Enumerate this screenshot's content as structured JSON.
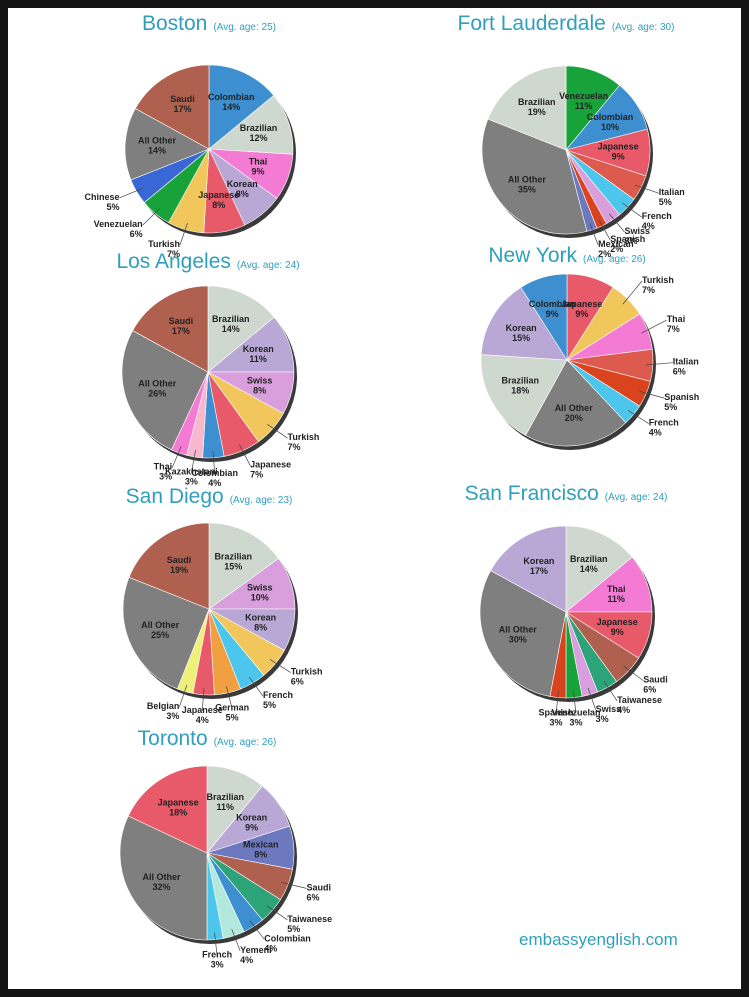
{
  "footer": "embassyenglish.com",
  "colors": {
    "title": "#2f9fbd",
    "border": "#141414",
    "Brazilian": "#cfd8cf",
    "Korean": "#b9a8d6",
    "Swiss": "#d89fdc",
    "Turkish": "#f1c65a",
    "Japanese": "#e8596a",
    "Colombian": "#3d8fd0",
    "Kazakhstani": "#f7b7cd",
    "Thai": "#f47bd4",
    "All Other": "#7f7f7f",
    "Saudi": "#b0604f",
    "Venezuelan": "#18a23a",
    "Chinese": "#3a67d6",
    "Italian": "#dc5b4e",
    "French": "#4cc6ec",
    "Spanish": "#d9441f",
    "Mexican": "#6d79bf",
    "German": "#f0a040",
    "Belgian": "#eef07a",
    "Taiwanese": "#2da37a",
    "Yemeni": "#b3e9dc"
  },
  "chart_data": [
    {
      "type": "pie",
      "city": "Boston",
      "subtitle": "(Avg. age: 25)",
      "slices": [
        {
          "label": "Colombian",
          "value": 14
        },
        {
          "label": "Brazilian",
          "value": 12
        },
        {
          "label": "Thai",
          "value": 9
        },
        {
          "label": "Korean",
          "value": 8
        },
        {
          "label": "Japanese",
          "value": 8
        },
        {
          "label": "Turkish",
          "value": 7
        },
        {
          "label": "Venezuelan",
          "value": 6
        },
        {
          "label": "Chinese",
          "value": 5
        },
        {
          "label": "All Other",
          "value": 14
        },
        {
          "label": "Saudi",
          "value": 17
        }
      ]
    },
    {
      "type": "pie",
      "city": "Fort Lauderdale",
      "subtitle": "(Avg. age: 30)",
      "slices": [
        {
          "label": "Venezuelan",
          "value": 11
        },
        {
          "label": "Colombian",
          "value": 10
        },
        {
          "label": "Japanese",
          "value": 9
        },
        {
          "label": "Italian",
          "value": 5
        },
        {
          "label": "French",
          "value": 4
        },
        {
          "label": "Swiss",
          "value": 3
        },
        {
          "label": "Spanish",
          "value": 2
        },
        {
          "label": "Mexican",
          "value": 2
        },
        {
          "label": "All Other",
          "value": 35
        },
        {
          "label": "Brazilian",
          "value": 19
        }
      ]
    },
    {
      "type": "pie",
      "city": "Los Angeles",
      "subtitle": "(Avg. age: 24)",
      "slices": [
        {
          "label": "Brazilian",
          "value": 14
        },
        {
          "label": "Korean",
          "value": 11
        },
        {
          "label": "Swiss",
          "value": 8
        },
        {
          "label": "Turkish",
          "value": 7
        },
        {
          "label": "Japanese",
          "value": 7
        },
        {
          "label": "Colombian",
          "value": 4
        },
        {
          "label": "Kazakhstani",
          "value": 3
        },
        {
          "label": "Thai",
          "value": 3
        },
        {
          "label": "All Other",
          "value": 26
        },
        {
          "label": "Saudi",
          "value": 17
        }
      ]
    },
    {
      "type": "pie",
      "city": "New York",
      "subtitle": "(Avg. age: 26)",
      "slices": [
        {
          "label": "Japanese",
          "value": 9
        },
        {
          "label": "Turkish",
          "value": 7
        },
        {
          "label": "Thai",
          "value": 7
        },
        {
          "label": "Italian",
          "value": 6
        },
        {
          "label": "Spanish",
          "value": 5
        },
        {
          "label": "French",
          "value": 4
        },
        {
          "label": "All Other",
          "value": 20
        },
        {
          "label": "Brazilian",
          "value": 18
        },
        {
          "label": "Korean",
          "value": 15
        },
        {
          "label": "Colombian",
          "value": 9
        }
      ]
    },
    {
      "type": "pie",
      "city": "San Diego",
      "subtitle": "(Avg. age: 23)",
      "slices": [
        {
          "label": "Brazilian",
          "value": 15
        },
        {
          "label": "Swiss",
          "value": 10
        },
        {
          "label": "Korean",
          "value": 8
        },
        {
          "label": "Turkish",
          "value": 6
        },
        {
          "label": "French",
          "value": 5
        },
        {
          "label": "German",
          "value": 5
        },
        {
          "label": "Japanese",
          "value": 4
        },
        {
          "label": "Belgian",
          "value": 3
        },
        {
          "label": "All Other",
          "value": 25
        },
        {
          "label": "Saudi",
          "value": 19
        }
      ]
    },
    {
      "type": "pie",
      "city": "San Francisco",
      "subtitle": "(Avg. age: 24)",
      "slices": [
        {
          "label": "Brazilian",
          "value": 14
        },
        {
          "label": "Thai",
          "value": 11
        },
        {
          "label": "Japanese",
          "value": 9
        },
        {
          "label": "Saudi",
          "value": 6
        },
        {
          "label": "Taiwanese",
          "value": 4
        },
        {
          "label": "Swiss",
          "value": 3
        },
        {
          "label": "Venezuelan",
          "value": 3
        },
        {
          "label": "Spanish",
          "value": 3
        },
        {
          "label": "All Other",
          "value": 30
        },
        {
          "label": "Korean",
          "value": 17
        }
      ]
    },
    {
      "type": "pie",
      "city": "Toronto",
      "subtitle": "(Avg. age: 26)",
      "slices": [
        {
          "label": "Brazilian",
          "value": 11
        },
        {
          "label": "Korean",
          "value": 9
        },
        {
          "label": "Mexican",
          "value": 8
        },
        {
          "label": "Saudi",
          "value": 6
        },
        {
          "label": "Taiwanese",
          "value": 5
        },
        {
          "label": "Colombian",
          "value": 4
        },
        {
          "label": "Yemeni",
          "value": 4
        },
        {
          "label": "French",
          "value": 3
        },
        {
          "label": "All Other",
          "value": 32
        },
        {
          "label": "Japanese",
          "value": 18
        }
      ]
    }
  ]
}
